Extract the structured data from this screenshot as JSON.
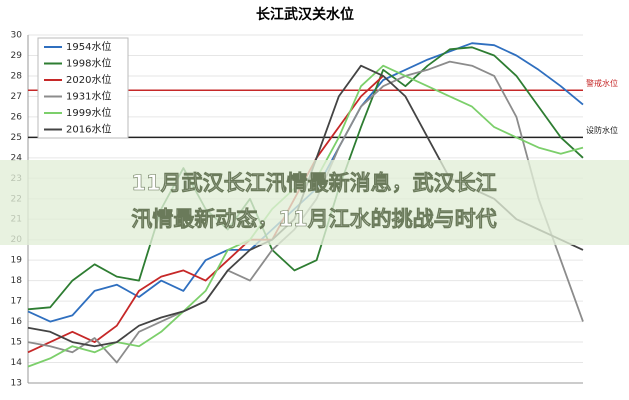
{
  "chart_data": {
    "type": "line",
    "title": "长江武汉关水位",
    "ylim": [
      13,
      30
    ],
    "yticks": [
      13,
      14,
      15,
      16,
      17,
      18,
      19,
      20,
      21,
      22,
      23,
      24,
      25,
      26,
      27,
      28,
      29,
      30
    ],
    "grid": true,
    "legend": "top-left",
    "series": [
      {
        "name": "1954水位",
        "color": "#2f6fbf",
        "values": [
          16.5,
          16.0,
          16.3,
          17.5,
          17.8,
          17.2,
          18.0,
          17.5,
          19.0,
          19.5,
          19.5,
          20.5,
          21.5,
          22.5,
          24.5,
          26.5,
          27.8,
          28.3,
          28.8,
          29.2,
          29.6,
          29.5,
          29.0,
          28.3,
          27.5,
          26.6
        ]
      },
      {
        "name": "1998水位",
        "color": "#2e7d32",
        "values": [
          16.6,
          16.7,
          18.0,
          18.8,
          18.2,
          18.0,
          21.5,
          23.5,
          21.5,
          20.5,
          22.0,
          19.5,
          18.5,
          19.0,
          22.5,
          25.5,
          28.3,
          27.5,
          28.5,
          29.3,
          29.4,
          29.0,
          28.0,
          26.5,
          25.0,
          24.0
        ]
      },
      {
        "name": "2020水位",
        "color": "#c62828",
        "values": [
          14.5,
          15.0,
          15.5,
          15.0,
          15.8,
          17.5,
          18.2,
          18.5,
          18.0,
          19.0,
          20.0,
          20.0,
          22.0,
          24.0,
          25.5,
          27.0,
          28.0,
          null,
          null,
          null,
          null,
          null,
          null,
          null,
          null,
          null
        ]
      },
      {
        "name": "1931水位",
        "color": "#8c8c8c",
        "values": [
          15.0,
          14.8,
          14.5,
          15.2,
          14.0,
          15.5,
          16.0,
          16.5,
          17.0,
          18.5,
          18.0,
          19.5,
          20.5,
          22.0,
          24.5,
          26.5,
          27.5,
          28.0,
          28.3,
          28.7,
          28.5,
          28.0,
          26.0,
          22.0,
          19.0,
          16.0
        ]
      },
      {
        "name": "1999水位",
        "color": "#7ccf6b",
        "values": [
          13.8,
          14.2,
          14.8,
          14.5,
          15.0,
          14.8,
          15.5,
          16.5,
          17.5,
          19.5,
          20.0,
          21.5,
          22.5,
          23.0,
          25.0,
          27.5,
          28.5,
          28.0,
          27.5,
          27.0,
          26.5,
          25.5,
          25.0,
          24.5,
          24.2,
          24.5
        ]
      },
      {
        "name": "2016水位",
        "color": "#444444",
        "values": [
          15.7,
          15.5,
          15.0,
          14.8,
          15.0,
          15.8,
          16.2,
          16.5,
          17.0,
          18.5,
          19.5,
          20.0,
          21.0,
          24.0,
          27.0,
          28.5,
          28.0,
          27.0,
          25.0,
          23.0,
          22.5,
          22.0,
          21.0,
          20.5,
          20.0,
          19.5
        ]
      }
    ],
    "reference_lines": [
      {
        "name": "警戒水位",
        "value": 27.3,
        "color": "#c62828"
      },
      {
        "name": "设防水位",
        "value": 25,
        "color": "#222222"
      }
    ]
  },
  "overlay": {
    "lines": [
      "11月武汉长江汛情最新消息，武汉长江",
      "汛情最新动态，11月江水的挑战与时代"
    ]
  }
}
